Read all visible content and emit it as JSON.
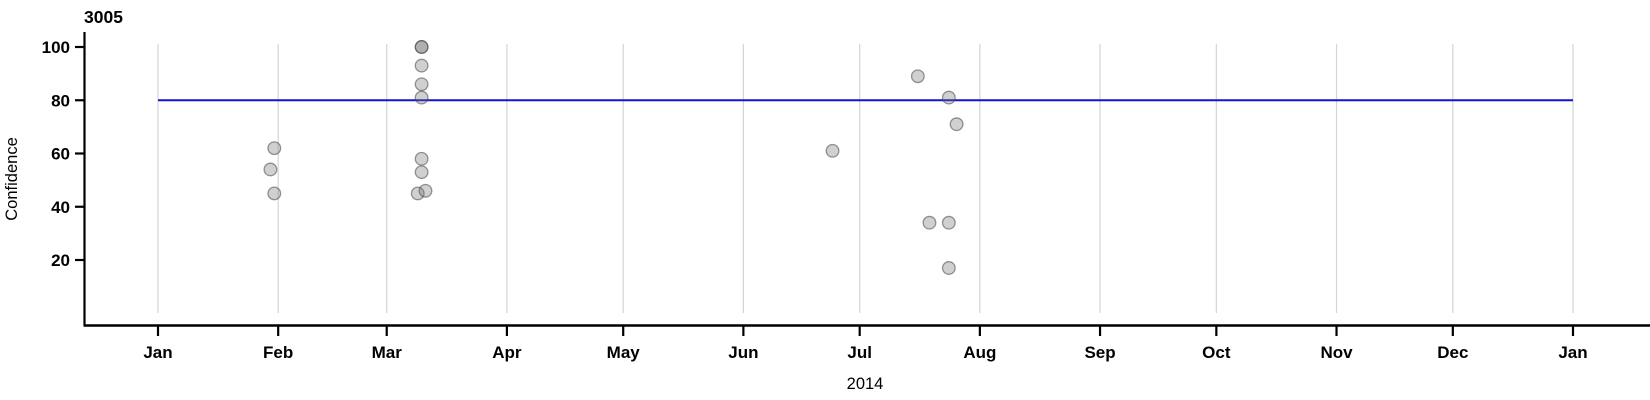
{
  "chart_data": {
    "type": "scatter",
    "title": "3005",
    "xlabel": "2014",
    "ylabel": "Confidence",
    "x_axis": {
      "year": "2014",
      "tick_labels": [
        "Jan",
        "Feb",
        "Mar",
        "Apr",
        "May",
        "Jun",
        "Jul",
        "Aug",
        "Sep",
        "Oct",
        "Nov",
        "Dec",
        "Jan"
      ],
      "tick_days": [
        0,
        31,
        59,
        90,
        120,
        151,
        181,
        212,
        243,
        273,
        304,
        334,
        365
      ],
      "domain_days": [
        0,
        365
      ],
      "grid": true
    },
    "y_axis": {
      "ticks": [
        20,
        40,
        60,
        80,
        100
      ],
      "lim": [
        0,
        105
      ]
    },
    "reference_line": {
      "value": 80,
      "span_days": [
        0,
        365
      ],
      "color": "#1414cd"
    },
    "legend": "none",
    "points": [
      {
        "date": "2014-01-30",
        "day": 29,
        "confidence": 54
      },
      {
        "date": "2014-01-31",
        "day": 30,
        "confidence": 62
      },
      {
        "date": "2014-01-31",
        "day": 30,
        "confidence": 45
      },
      {
        "date": "2014-03-10",
        "day": 68,
        "confidence": 100
      },
      {
        "date": "2014-03-10",
        "day": 68,
        "confidence": 100
      },
      {
        "date": "2014-03-10",
        "day": 68,
        "confidence": 93
      },
      {
        "date": "2014-03-10",
        "day": 68,
        "confidence": 86
      },
      {
        "date": "2014-03-10",
        "day": 68,
        "confidence": 81
      },
      {
        "date": "2014-03-10",
        "day": 68,
        "confidence": 58
      },
      {
        "date": "2014-03-10",
        "day": 68,
        "confidence": 53
      },
      {
        "date": "2014-03-09",
        "day": 67,
        "confidence": 45
      },
      {
        "date": "2014-03-11",
        "day": 69,
        "confidence": 46
      },
      {
        "date": "2014-06-24",
        "day": 174,
        "confidence": 61
      },
      {
        "date": "2014-07-16",
        "day": 196,
        "confidence": 89
      },
      {
        "date": "2014-07-19",
        "day": 199,
        "confidence": 34
      },
      {
        "date": "2014-07-24",
        "day": 204,
        "confidence": 81
      },
      {
        "date": "2014-07-24",
        "day": 204,
        "confidence": 34
      },
      {
        "date": "2014-07-24",
        "day": 204,
        "confidence": 17
      },
      {
        "date": "2014-07-26",
        "day": 206,
        "confidence": 71
      }
    ],
    "colors": {
      "background": "#ffffff",
      "axis": "#000000",
      "gridline": "#d4d4d4",
      "reference_line": "#1414cd",
      "point_fill": "rgba(110,110,110,0.32)",
      "point_stroke": "rgba(70,70,70,0.55)",
      "text": "#000000"
    }
  }
}
